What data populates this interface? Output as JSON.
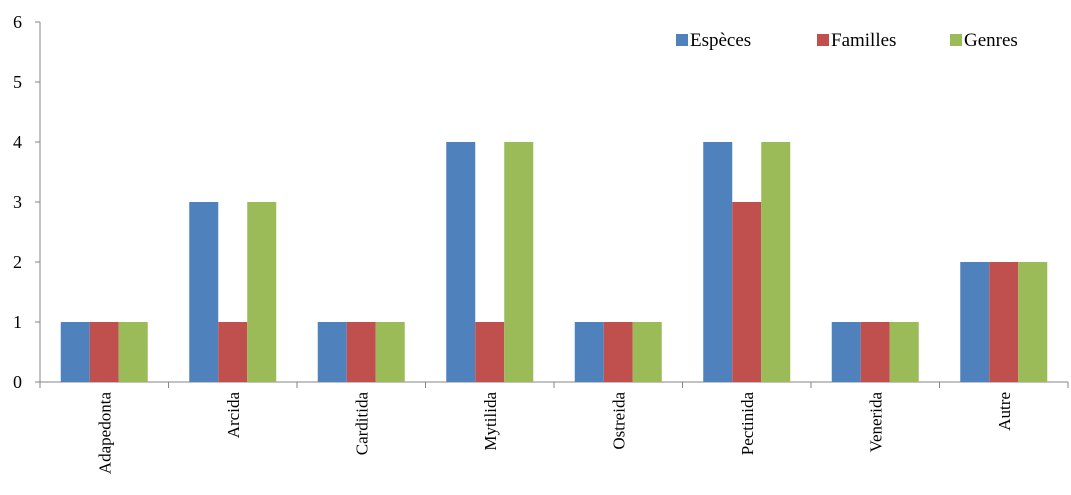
{
  "chart_data": {
    "type": "bar",
    "title": "",
    "xlabel": "",
    "ylabel": "",
    "ylim": [
      0,
      6
    ],
    "yticks": [
      0,
      1,
      2,
      3,
      4,
      5,
      6
    ],
    "grid": false,
    "legend_position": "top-right",
    "categories": [
      "Adapedonta",
      "Arcida",
      "Carditida",
      "Mytilida",
      "Ostreida",
      "Pectinida",
      "Venerida",
      "Autre"
    ],
    "series": [
      {
        "name": "Espèces",
        "color": "#4F81BD",
        "values": [
          1,
          3,
          1,
          4,
          1,
          4,
          1,
          2
        ]
      },
      {
        "name": "Familles",
        "color": "#C0504D",
        "values": [
          1,
          1,
          1,
          1,
          1,
          3,
          1,
          2
        ]
      },
      {
        "name": "Genres",
        "color": "#9BBB59",
        "values": [
          1,
          3,
          1,
          4,
          1,
          4,
          1,
          2
        ]
      }
    ]
  }
}
